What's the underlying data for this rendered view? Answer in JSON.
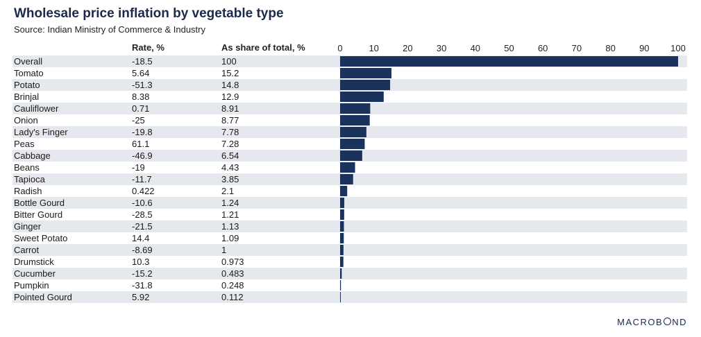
{
  "title": "Wholesale price inflation by vegetable type",
  "subtitle": "Source: Indian Ministry of Commerce & Industry",
  "columns": {
    "rate": "Rate, %",
    "share": "As share of total, %"
  },
  "logo": "MACROBOND",
  "colors": {
    "bar": "#1b335c",
    "row_shade": "#e5e8ed",
    "title": "#1b2a4a"
  },
  "chart_data": {
    "type": "bar",
    "orientation": "horizontal",
    "title": "Wholesale price inflation by vegetable type",
    "subtitle": "Source: Indian Ministry of Commerce & Industry",
    "xlabel": "",
    "ylabel": "",
    "xlim": [
      0,
      100
    ],
    "ticks": [
      0,
      10,
      20,
      30,
      40,
      50,
      60,
      70,
      80,
      90,
      100
    ],
    "grid": false,
    "categories": [
      "Overall",
      "Tomato",
      "Potato",
      "Brinjal",
      "Cauliflower",
      "Onion",
      "Lady's Finger",
      "Peas",
      "Cabbage",
      "Beans",
      "Tapioca",
      "Radish",
      "Bottle Gourd",
      "Bitter Gourd",
      "Ginger",
      "Sweet Potato",
      "Carrot",
      "Drumstick",
      "Cucumber",
      "Pumpkin",
      "Pointed Gourd"
    ],
    "rate": [
      "-18.5",
      "5.64",
      "-51.3",
      "8.38",
      "0.71",
      "-25",
      "-19.8",
      "61.1",
      "-46.9",
      "-19",
      "-11.7",
      "0.422",
      "-10.6",
      "-28.5",
      "-21.5",
      "14.4",
      "-8.69",
      "10.3",
      "-15.2",
      "-31.8",
      "5.92"
    ],
    "share_labels": [
      "100",
      "15.2",
      "14.8",
      "12.9",
      "8.91",
      "8.77",
      "7.78",
      "7.28",
      "6.54",
      "4.43",
      "3.85",
      "2.1",
      "1.24",
      "1.21",
      "1.13",
      "1.09",
      "1",
      "0.973",
      "0.483",
      "0.248",
      "0.112"
    ],
    "values": [
      100,
      15.2,
      14.8,
      12.9,
      8.91,
      8.77,
      7.78,
      7.28,
      6.54,
      4.43,
      3.85,
      2.1,
      1.24,
      1.21,
      1.13,
      1.09,
      1,
      0.973,
      0.483,
      0.248,
      0.112
    ]
  }
}
